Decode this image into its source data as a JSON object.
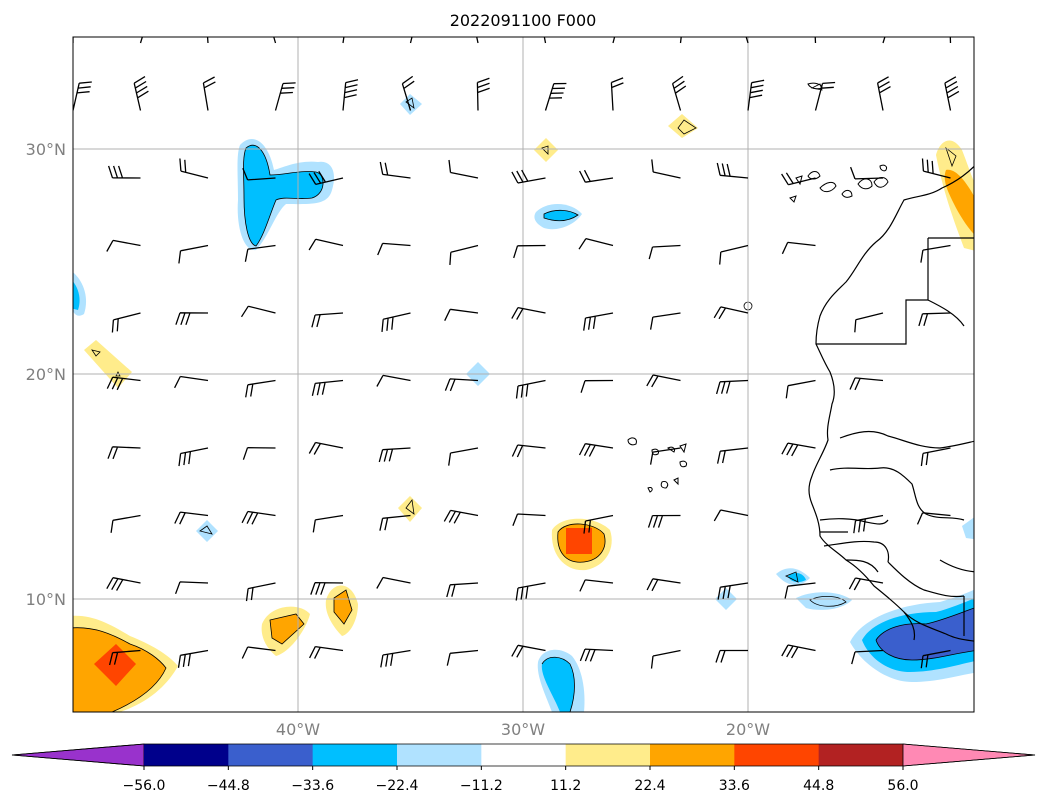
{
  "title": "2022091100 F000",
  "map": {
    "lat_labels": [
      "30°N",
      "20°N",
      "10°N"
    ],
    "lon_labels": [
      "40°W",
      "30°W",
      "20°W"
    ]
  },
  "colorbar": {
    "labels": [
      "−56.0",
      "−44.8",
      "−33.6",
      "−22.4",
      "−11.2",
      "11.2",
      "22.4",
      "33.6",
      "44.8",
      "56.0"
    ],
    "colors": [
      "#9932cc",
      "#00008b",
      "#3a5fcd",
      "#00bfff",
      "#b0e2ff",
      "#ffffff",
      "#ffec8b",
      "#ffa500",
      "#ff4500",
      "#b22222",
      "#ff89b4"
    ]
  }
}
